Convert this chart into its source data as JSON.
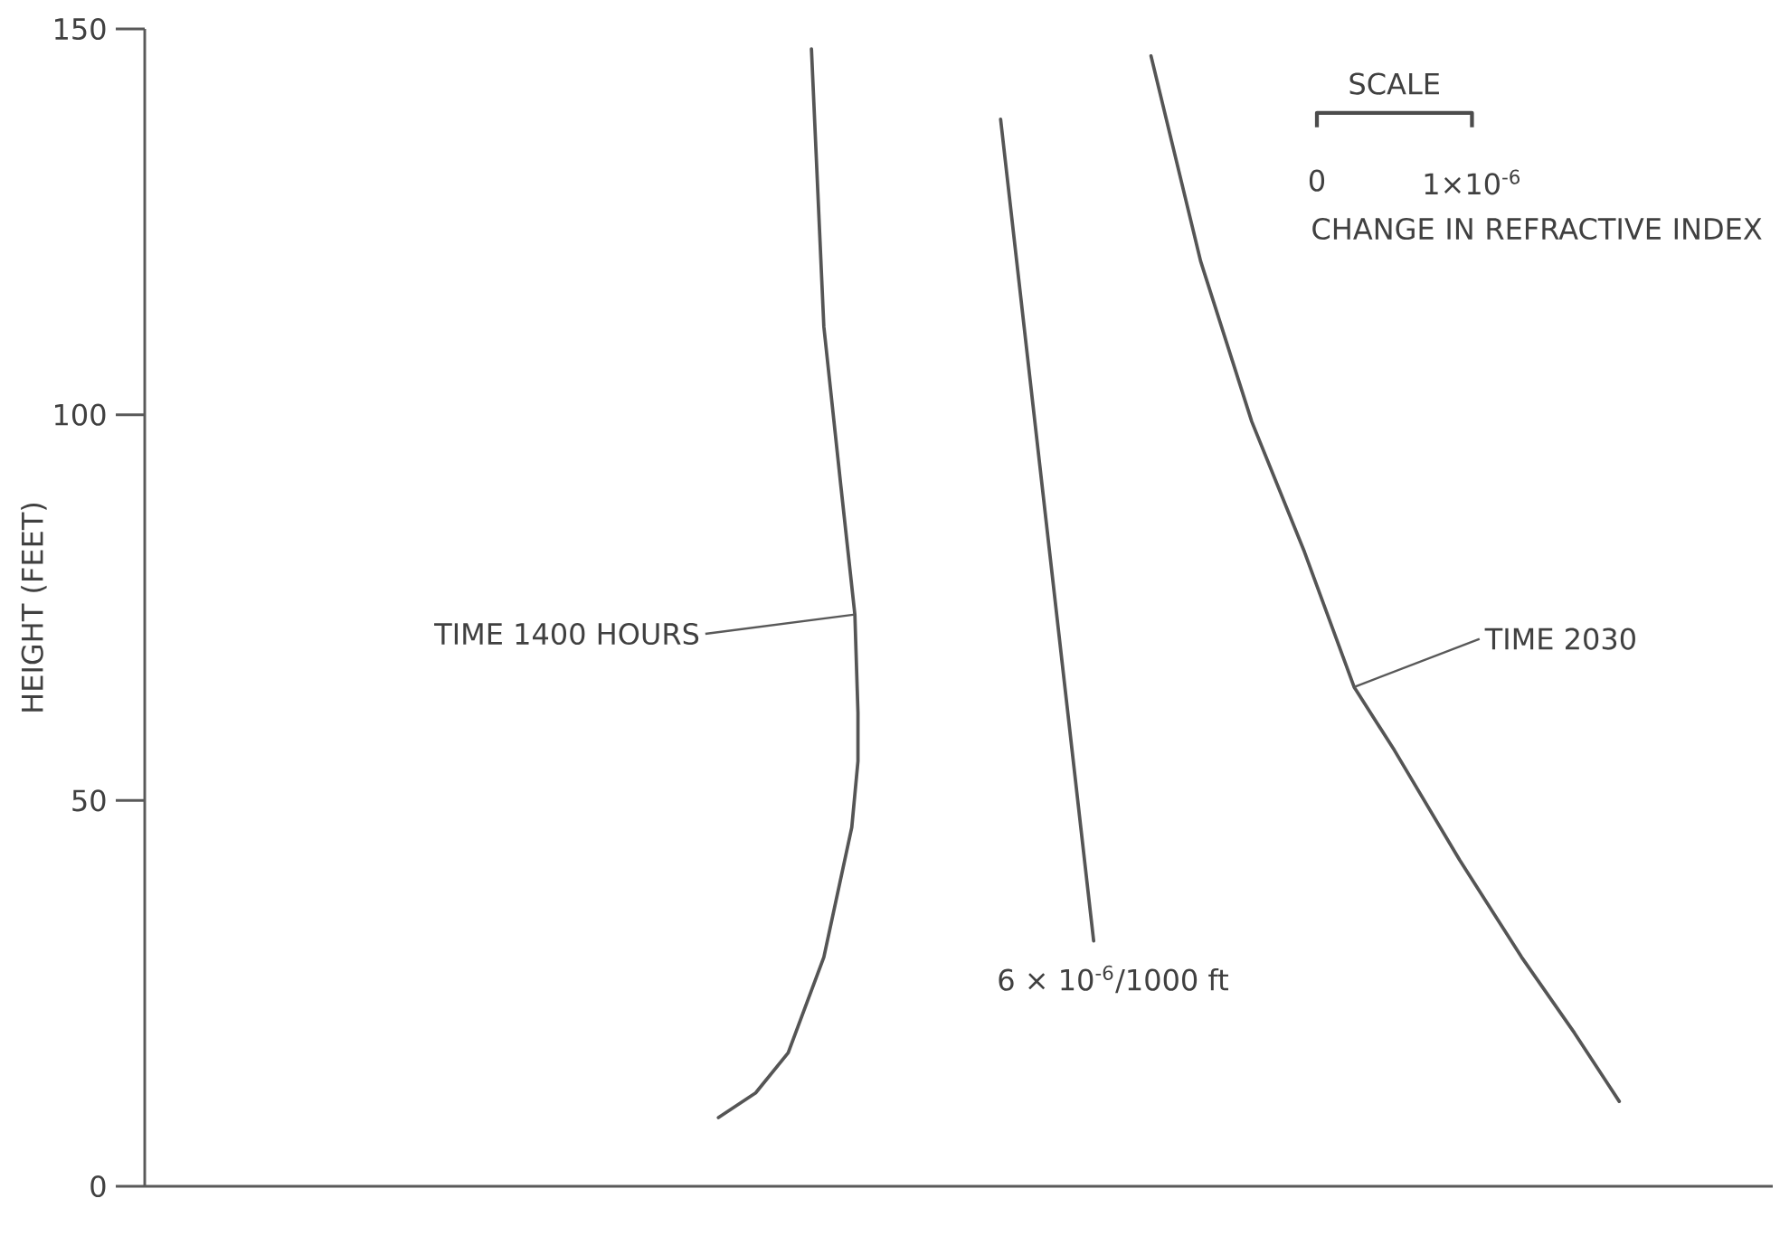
{
  "chart_data": {
    "type": "line",
    "ylabel": "HEIGHT (FEET)",
    "xlabel": "CHANGE IN REFRACTIVE INDEX",
    "xlim": [
      -7.56e-06,
      2.94e-06
    ],
    "ylim": [
      0,
      150
    ],
    "xticks": [
      0,
      {
        "value": 1e-06,
        "label": "1×10$^{-6}$"
      }
    ],
    "yticks": [
      0,
      50,
      100,
      150
    ],
    "series": [
      {
        "color": "#555555",
        "x": [
          -3.26e-06,
          -3.18e-06,
          -3.07e-06,
          -2.98e-06,
          -2.96e-06,
          -2.96e-06,
          -3e-06,
          -3.18e-06,
          -3.41e-06,
          -3.62e-06,
          -3.86e-06
        ],
        "values": [
          147.4,
          111.4,
          90.7,
          74.1,
          61.4,
          55.1,
          46.5,
          29.7,
          17.3,
          12.1,
          8.9
        ]
      },
      {
        "color": "#555555",
        "x": [
          -2.04e-06,
          -1.44e-06
        ],
        "values": [
          138.3,
          31.8
        ]
      },
      {
        "color": "#555555",
        "x": [
          -1.07e-06,
          -7.5e-07,
          -4.2e-07,
          -8e-08,
          2.4e-07,
          5e-07,
          9.2e-07,
          1.32e-06,
          1.66e-06,
          1.95e-06
        ],
        "values": [
          146.5,
          119.9,
          99.1,
          82.2,
          64.7,
          56.5,
          42.3,
          29.7,
          19.9,
          11.0
        ]
      }
    ],
    "annotations": [
      {
        "text": "TIME 1400 HOURS",
        "x": -2.98e-06,
        "y": 74.1
      },
      {
        "text": "TIME 2030",
        "x": 2.4e-07,
        "y": 64.7
      },
      {
        "text": "6 × 10$^{-6}$/1000 ft",
        "x": -1.44e-06,
        "y": 31.8
      },
      "SCALE"
    ]
  }
}
